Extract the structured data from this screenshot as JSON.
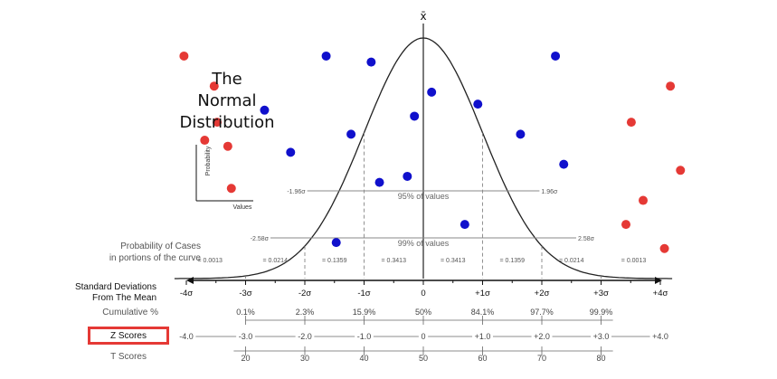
{
  "title_lines": [
    "The",
    "Normal",
    "Distribution"
  ],
  "mean_symbol": "x̄",
  "inset": {
    "ylabel": "Probability",
    "xlabel": "Values"
  },
  "row_labels": {
    "probability": "Probability of Cases\nin portions of the curve",
    "std_dev": "Standard Deviations\nFrom The Mean",
    "cumulative": "Cumulative %",
    "z_scores": "Z Scores",
    "t_scores": "T Scores"
  },
  "std_dev_ticks": [
    "-4σ",
    "-3σ",
    "-2σ",
    "-1σ",
    "0",
    "+1σ",
    "+2σ",
    "+3σ",
    "+4σ"
  ],
  "cumulative": [
    "0.1%",
    "2.3%",
    "15.9%",
    "50%",
    "84.1%",
    "97.7%",
    "99.9%"
  ],
  "z_scores": [
    "-4.0",
    "-3.0",
    "-2.0",
    "-1.0",
    "0",
    "+1.0",
    "+2.0",
    "+3.0",
    "+4.0"
  ],
  "t_scores": [
    "20",
    "30",
    "40",
    "50",
    "60",
    "70",
    "80"
  ],
  "portions": [
    "= 0.0013",
    "= 0.0214",
    "= 0.1359",
    "= 0.3413",
    "= 0.3413",
    "= 0.1359",
    "= 0.0214",
    "= 0.0013"
  ],
  "ci95": {
    "label": "95% of values",
    "left": "-1.96σ",
    "right": "1.96σ"
  },
  "ci99": {
    "label": "99% of values",
    "left": "-2.58σ",
    "right": "2.58σ"
  },
  "colors": {
    "inside": "#1010cc",
    "outside": "#e53935",
    "curve": "#222222",
    "highlight": "#e53935"
  },
  "points": [
    {
      "sigma": -4.04,
      "p": 0.37,
      "group": "outside"
    },
    {
      "sigma": -3.53,
      "p": 0.32,
      "group": "outside"
    },
    {
      "sigma": -3.48,
      "p": 0.26,
      "group": "outside"
    },
    {
      "sigma": -3.69,
      "p": 0.23,
      "group": "outside"
    },
    {
      "sigma": -3.3,
      "p": 0.22,
      "group": "outside"
    },
    {
      "sigma": -3.24,
      "p": 0.15,
      "group": "outside"
    },
    {
      "sigma": -2.68,
      "p": 0.28,
      "group": "inside"
    },
    {
      "sigma": -2.24,
      "p": 0.21,
      "group": "inside"
    },
    {
      "sigma": -1.64,
      "p": 0.37,
      "group": "inside"
    },
    {
      "sigma": -1.22,
      "p": 0.24,
      "group": "inside"
    },
    {
      "sigma": -1.47,
      "p": 0.06,
      "group": "inside"
    },
    {
      "sigma": -0.88,
      "p": 0.36,
      "group": "inside"
    },
    {
      "sigma": -0.74,
      "p": 0.16,
      "group": "inside"
    },
    {
      "sigma": -0.27,
      "p": 0.17,
      "group": "inside"
    },
    {
      "sigma": -0.15,
      "p": 0.27,
      "group": "inside"
    },
    {
      "sigma": 0.14,
      "p": 0.31,
      "group": "inside"
    },
    {
      "sigma": 0.7,
      "p": 0.09,
      "group": "inside"
    },
    {
      "sigma": 0.92,
      "p": 0.29,
      "group": "inside"
    },
    {
      "sigma": 1.64,
      "p": 0.24,
      "group": "inside"
    },
    {
      "sigma": 2.23,
      "p": 0.37,
      "group": "inside"
    },
    {
      "sigma": 2.37,
      "p": 0.19,
      "group": "inside"
    },
    {
      "sigma": 3.42,
      "p": 0.09,
      "group": "outside"
    },
    {
      "sigma": 3.51,
      "p": 0.26,
      "group": "outside"
    },
    {
      "sigma": 3.71,
      "p": 0.13,
      "group": "outside"
    },
    {
      "sigma": 4.17,
      "p": 0.32,
      "group": "outside"
    },
    {
      "sigma": 4.34,
      "p": 0.18,
      "group": "outside"
    },
    {
      "sigma": 4.07,
      "p": 0.05,
      "group": "outside"
    }
  ]
}
